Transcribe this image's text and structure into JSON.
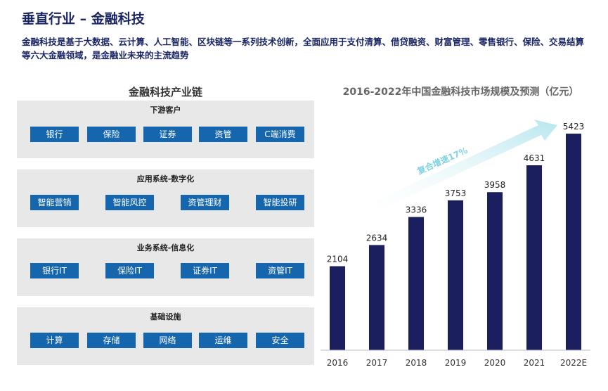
{
  "header": {
    "title": "垂直行业 – 金融科技",
    "subtitle": "金融科技是基于大数据、云计算、人工智能、区块链等一系列技术创新，全面应用于支付清算、借贷融资、财富管理、零售银行、保险、交易结算等六大金融领域，是金融业未来的主流趋势"
  },
  "industry_chain": {
    "title": "金融科技产业链",
    "sections": [
      {
        "title": "下游客户",
        "items": [
          "银行",
          "保险",
          "证券",
          "资管",
          "C端消费"
        ]
      },
      {
        "title": "应用系统-数字化",
        "items": [
          "智能营销",
          "智能风控",
          "资管理财",
          "智能投研"
        ]
      },
      {
        "title": "业务系统-信息化",
        "items": [
          "银行IT",
          "保险IT",
          "证券IT",
          "资管IT"
        ]
      },
      {
        "title": "基础设施",
        "items": [
          "计算",
          "存储",
          "网络",
          "运维",
          "安全"
        ]
      }
    ]
  },
  "chart_data": {
    "type": "bar",
    "title": "2016-2022年中国金融科技市场规模及预测（亿元）",
    "categories": [
      "2016",
      "2017",
      "2018",
      "2019",
      "2020",
      "2021",
      "2022E"
    ],
    "values": [
      2104,
      2634,
      3336,
      3753,
      3958,
      4631,
      5423
    ],
    "annotation": "复合增速17%",
    "bar_color": "#1b1f5e",
    "arrow_color": "#bfeaf0",
    "ylim": [
      0,
      5600
    ]
  }
}
